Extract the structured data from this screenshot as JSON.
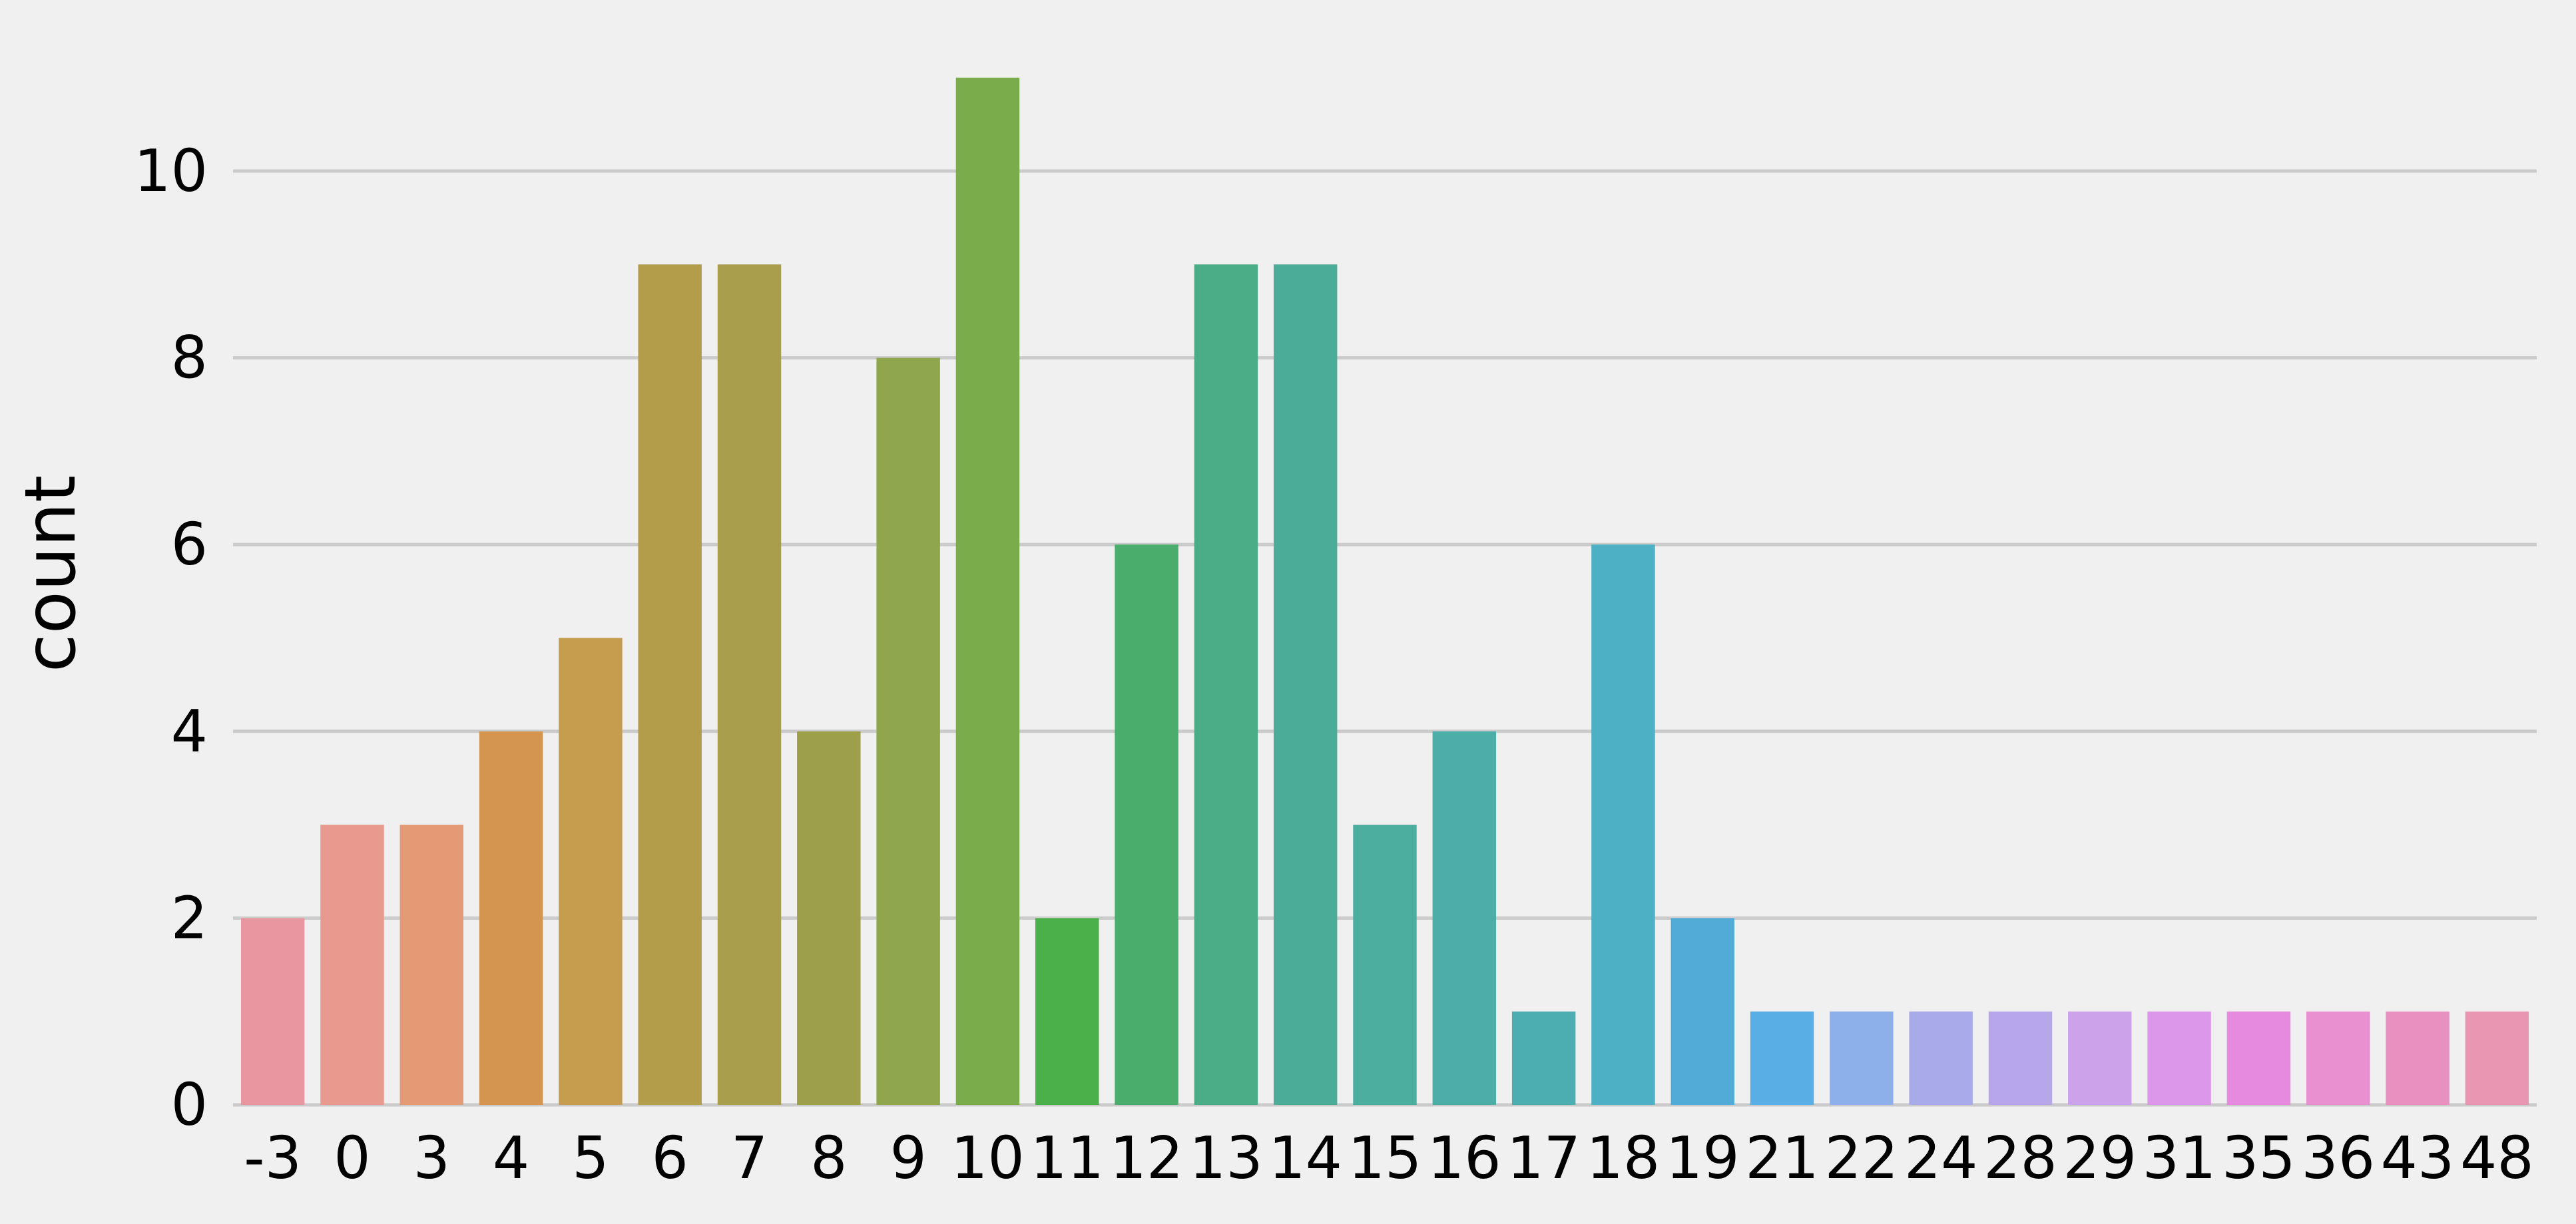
{
  "chart_data": {
    "type": "bar",
    "title": "",
    "xlabel": "",
    "ylabel": "count",
    "ylim": [
      0,
      11.5
    ],
    "yticks": [
      0,
      2,
      4,
      6,
      8,
      10
    ],
    "grid": "horizontal",
    "categories": [
      "-3",
      "0",
      "3",
      "4",
      "5",
      "6",
      "7",
      "8",
      "9",
      "10",
      "11",
      "12",
      "13",
      "14",
      "15",
      "16",
      "17",
      "18",
      "19",
      "21",
      "22",
      "24",
      "28",
      "29",
      "31",
      "35",
      "36",
      "43",
      "48"
    ],
    "values": [
      2,
      3,
      3,
      4,
      5,
      9,
      9,
      4,
      8,
      11,
      2,
      6,
      9,
      9,
      3,
      4,
      1,
      6,
      2,
      1,
      1,
      1,
      1,
      1,
      1,
      1,
      1,
      1,
      1
    ],
    "colors": [
      "#e8969f",
      "#e89a8f",
      "#e49a74",
      "#d39550",
      "#c69d4f",
      "#b39c4a",
      "#a99e4b",
      "#9e9f4b",
      "#8fa64c",
      "#7aac4b",
      "#4bb04a",
      "#4aad6c",
      "#4bad88",
      "#4bac98",
      "#4cae9f",
      "#4caea6",
      "#4caeb0",
      "#4db0c4",
      "#52aad6",
      "#5aaee6",
      "#8eb0ea",
      "#a9aaea",
      "#b8a6ea",
      "#cca2ea",
      "#dc96ea",
      "#e68ae0",
      "#e890d0",
      "#e890c0",
      "#e896b2"
    ],
    "gridColor": "#cbcbcb",
    "background": "#f0f0f0"
  }
}
